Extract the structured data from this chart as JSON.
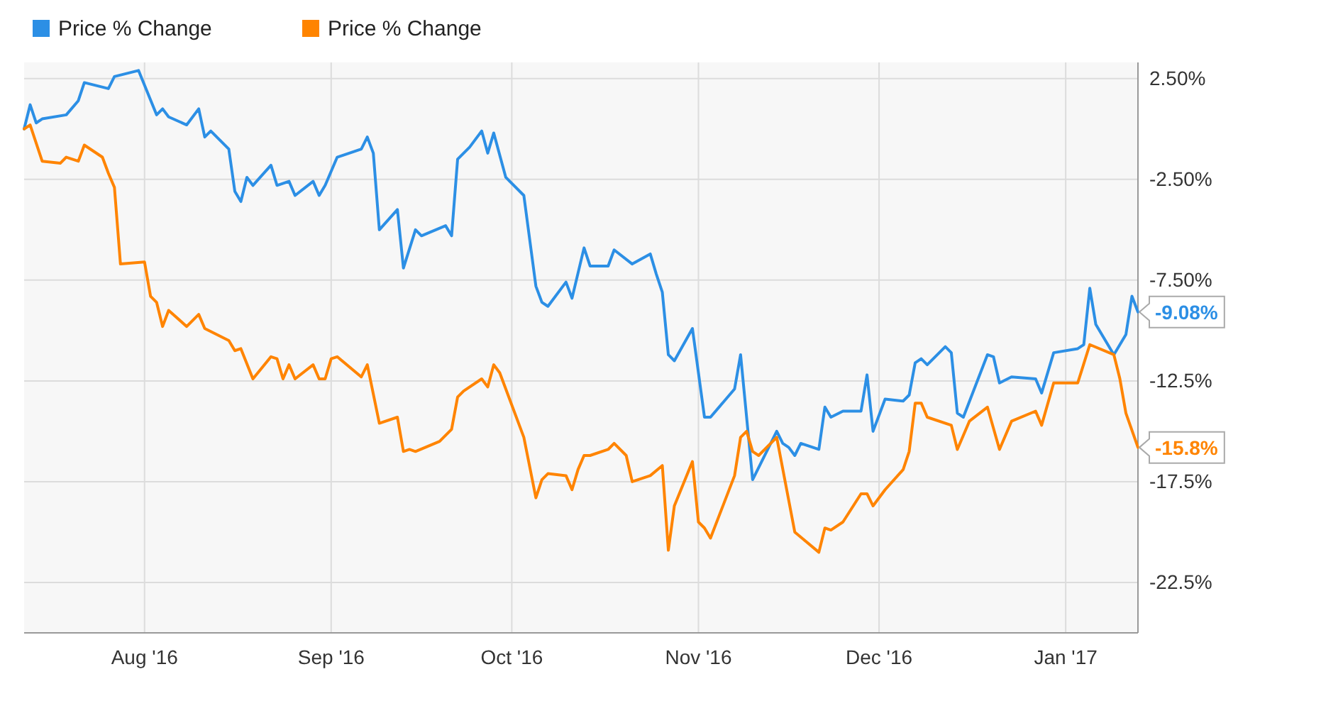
{
  "chart_data": {
    "type": "line",
    "xlim": [
      "2016-07-12",
      "2017-01-13"
    ],
    "xticks": [
      {
        "value": "2016-08-01",
        "label": "Aug '16"
      },
      {
        "value": "2016-09-01",
        "label": "Sep '16"
      },
      {
        "value": "2016-10-01",
        "label": "Oct '16"
      },
      {
        "value": "2016-11-01",
        "label": "Nov '16"
      },
      {
        "value": "2016-12-01",
        "label": "Dec '16"
      },
      {
        "value": "2017-01-01",
        "label": "Jan '17"
      }
    ],
    "ylim": [
      -25,
      3.3
    ],
    "yticks": [
      {
        "value": 2.5,
        "label": "2.50%"
      },
      {
        "value": -2.5,
        "label": "-2.50%"
      },
      {
        "value": -7.5,
        "label": "-7.50%"
      },
      {
        "value": -12.5,
        "label": "-12.5%"
      },
      {
        "value": -17.5,
        "label": "-17.5%"
      },
      {
        "value": -22.5,
        "label": "-22.5%"
      }
    ],
    "grid": true,
    "legend": "top left",
    "marker": "none",
    "line_style": "solid",
    "series": [
      {
        "name": "Price % Change",
        "color": "#2c8fe5",
        "x": [
          "2016-07-12",
          "2016-07-13",
          "2016-07-14",
          "2016-07-15",
          "2016-07-19",
          "2016-07-21",
          "2016-07-22",
          "2016-07-26",
          "2016-07-27",
          "2016-07-31",
          "2016-08-03",
          "2016-08-04",
          "2016-08-05",
          "2016-08-08",
          "2016-08-10",
          "2016-08-11",
          "2016-08-12",
          "2016-08-15",
          "2016-08-16",
          "2016-08-17",
          "2016-08-18",
          "2016-08-19",
          "2016-08-22",
          "2016-08-23",
          "2016-08-25",
          "2016-08-26",
          "2016-08-29",
          "2016-08-30",
          "2016-08-31",
          "2016-09-02",
          "2016-09-06",
          "2016-09-07",
          "2016-09-08",
          "2016-09-09",
          "2016-09-12",
          "2016-09-13",
          "2016-09-15",
          "2016-09-16",
          "2016-09-20",
          "2016-09-21",
          "2016-09-22",
          "2016-09-24",
          "2016-09-26",
          "2016-09-27",
          "2016-09-28",
          "2016-09-30",
          "2016-10-03",
          "2016-10-05",
          "2016-10-06",
          "2016-10-07",
          "2016-10-10",
          "2016-10-11",
          "2016-10-13",
          "2016-10-14",
          "2016-10-17",
          "2016-10-18",
          "2016-10-21",
          "2016-10-24",
          "2016-10-25",
          "2016-10-26",
          "2016-10-27",
          "2016-10-28",
          "2016-10-31",
          "2016-11-02",
          "2016-11-03",
          "2016-11-07",
          "2016-11-08",
          "2016-11-10",
          "2016-11-14",
          "2016-11-15",
          "2016-11-16",
          "2016-11-17",
          "2016-11-18",
          "2016-11-21",
          "2016-11-22",
          "2016-11-23",
          "2016-11-25",
          "2016-11-28",
          "2016-11-29",
          "2016-11-30",
          "2016-12-02",
          "2016-12-05",
          "2016-12-06",
          "2016-12-07",
          "2016-12-08",
          "2016-12-09",
          "2016-12-12",
          "2016-12-13",
          "2016-12-14",
          "2016-12-15",
          "2016-12-19",
          "2016-12-20",
          "2016-12-21",
          "2016-12-23",
          "2016-12-27",
          "2016-12-28",
          "2016-12-30",
          "2017-01-03",
          "2017-01-04",
          "2017-01-05",
          "2017-01-06",
          "2017-01-09",
          "2017-01-11",
          "2017-01-12",
          "2017-01-13"
        ],
        "values": [
          0,
          1.2,
          0.3,
          0.5,
          0.7,
          1.4,
          2.3,
          2.0,
          2.6,
          2.9,
          0.7,
          1.0,
          0.6,
          0.2,
          1.0,
          -0.4,
          -0.1,
          -1.0,
          -3.1,
          -3.6,
          -2.4,
          -2.8,
          -1.8,
          -2.8,
          -2.6,
          -3.3,
          -2.6,
          -3.3,
          -2.8,
          -1.4,
          -1.0,
          -0.4,
          -1.2,
          -5.0,
          -4.0,
          -6.9,
          -5.0,
          -5.3,
          -4.8,
          -5.3,
          -1.5,
          -0.9,
          -0.1,
          -1.2,
          -0.2,
          -2.4,
          -3.3,
          -7.8,
          -8.6,
          -8.8,
          -7.6,
          -8.4,
          -5.9,
          -6.8,
          -6.8,
          -6.0,
          -6.7,
          -6.2,
          -7.2,
          -8.1,
          -11.2,
          -11.5,
          -9.9,
          -14.3,
          -14.3,
          -12.9,
          -11.2,
          -17.4,
          -15.0,
          -15.6,
          -15.8,
          -16.2,
          -15.6,
          -15.9,
          -13.8,
          -14.3,
          -14.0,
          -14.0,
          -12.2,
          -15.0,
          -13.4,
          -13.5,
          -13.2,
          -11.6,
          -11.4,
          -11.7,
          -10.8,
          -11.1,
          -14.1,
          -14.3,
          -11.2,
          -11.3,
          -12.6,
          -12.3,
          -12.4,
          -13.1,
          -11.1,
          -10.9,
          -10.7,
          -7.9,
          -9.7,
          -11.2,
          -10.2,
          -8.3,
          -9.08
        ],
        "value_labels": [
          null,
          null,
          null,
          null,
          null,
          null,
          null,
          null,
          null,
          null,
          null,
          null,
          null,
          null,
          null,
          null,
          null,
          null,
          null,
          null,
          null,
          null,
          null,
          null,
          null,
          null,
          null,
          null,
          null,
          null,
          null,
          null,
          null,
          null,
          null,
          null,
          null,
          null,
          null,
          null,
          null,
          null,
          null,
          null,
          null,
          null,
          null,
          null,
          null,
          null,
          null,
          null,
          null,
          null,
          null,
          null,
          null,
          null,
          null,
          null,
          null,
          null,
          null,
          null,
          null,
          null,
          null,
          null,
          null,
          null,
          null,
          null,
          null,
          null,
          null,
          null,
          null,
          null,
          null,
          null,
          null,
          null,
          null,
          null,
          null,
          null,
          null,
          null,
          null,
          null,
          null,
          null,
          null,
          null,
          null,
          null,
          null,
          null,
          null,
          null,
          null,
          null,
          null,
          null,
          "-9.08%"
        ]
      },
      {
        "name": "Price % Change",
        "color": "#ff8400",
        "x": [
          "2016-07-12",
          "2016-07-13",
          "2016-07-15",
          "2016-07-18",
          "2016-07-19",
          "2016-07-21",
          "2016-07-22",
          "2016-07-25",
          "2016-07-26",
          "2016-07-27",
          "2016-07-28",
          "2016-08-01",
          "2016-08-02",
          "2016-08-03",
          "2016-08-04",
          "2016-08-05",
          "2016-08-08",
          "2016-08-10",
          "2016-08-11",
          "2016-08-15",
          "2016-08-16",
          "2016-08-17",
          "2016-08-19",
          "2016-08-22",
          "2016-08-23",
          "2016-08-24",
          "2016-08-25",
          "2016-08-26",
          "2016-08-29",
          "2016-08-30",
          "2016-08-31",
          "2016-09-01",
          "2016-09-02",
          "2016-09-06",
          "2016-09-07",
          "2016-09-09",
          "2016-09-12",
          "2016-09-13",
          "2016-09-14",
          "2016-09-15",
          "2016-09-19",
          "2016-09-21",
          "2016-09-22",
          "2016-09-23",
          "2016-09-26",
          "2016-09-27",
          "2016-09-28",
          "2016-09-29",
          "2016-10-03",
          "2016-10-05",
          "2016-10-06",
          "2016-10-07",
          "2016-10-10",
          "2016-10-11",
          "2016-10-12",
          "2016-10-13",
          "2016-10-14",
          "2016-10-17",
          "2016-10-18",
          "2016-10-20",
          "2016-10-21",
          "2016-10-24",
          "2016-10-26",
          "2016-10-27",
          "2016-10-28",
          "2016-10-31",
          "2016-11-01",
          "2016-11-02",
          "2016-11-03",
          "2016-11-07",
          "2016-11-08",
          "2016-11-09",
          "2016-11-10",
          "2016-11-11",
          "2016-11-14",
          "2016-11-17",
          "2016-11-21",
          "2016-11-22",
          "2016-11-23",
          "2016-11-25",
          "2016-11-28",
          "2016-11-29",
          "2016-11-30",
          "2016-12-02",
          "2016-12-05",
          "2016-12-06",
          "2016-12-07",
          "2016-12-08",
          "2016-12-09",
          "2016-12-13",
          "2016-12-14",
          "2016-12-16",
          "2016-12-19",
          "2016-12-21",
          "2016-12-23",
          "2016-12-27",
          "2016-12-28",
          "2016-12-30",
          "2017-01-03",
          "2017-01-05",
          "2017-01-09",
          "2017-01-10",
          "2017-01-11",
          "2017-01-13"
        ],
        "values": [
          0,
          0.2,
          -1.6,
          -1.7,
          -1.4,
          -1.6,
          -0.8,
          -1.4,
          -2.2,
          -2.9,
          -6.7,
          -6.6,
          -8.3,
          -8.6,
          -9.8,
          -9.0,
          -9.8,
          -9.2,
          -9.9,
          -10.5,
          -11.0,
          -10.9,
          -12.4,
          -11.3,
          -11.4,
          -12.4,
          -11.7,
          -12.4,
          -11.7,
          -12.4,
          -12.4,
          -11.4,
          -11.3,
          -12.3,
          -11.7,
          -14.6,
          -14.3,
          -16.0,
          -15.9,
          -16.0,
          -15.5,
          -14.9,
          -13.3,
          -13.0,
          -12.4,
          -12.8,
          -11.7,
          -12.1,
          -15.3,
          -18.3,
          -17.4,
          -17.1,
          -17.2,
          -17.9,
          -16.9,
          -16.2,
          -16.2,
          -15.9,
          -15.6,
          -16.2,
          -17.5,
          -17.2,
          -16.7,
          -20.9,
          -18.7,
          -16.5,
          -19.5,
          -19.8,
          -20.3,
          -17.2,
          -15.3,
          -15.0,
          -16.0,
          -16.2,
          -15.3,
          -20.0,
          -21.0,
          -19.8,
          -19.9,
          -19.5,
          -18.1,
          -18.1,
          -18.7,
          -17.9,
          -16.9,
          -16.0,
          -13.6,
          -13.6,
          -14.3,
          -14.7,
          -15.9,
          -14.5,
          -13.8,
          -15.9,
          -14.5,
          -14.0,
          -14.7,
          -12.6,
          -12.6,
          -10.7,
          -11.2,
          -12.4,
          -14.1,
          -15.8
        ],
        "value_labels": [
          null,
          null,
          null,
          null,
          null,
          null,
          null,
          null,
          null,
          null,
          null,
          null,
          null,
          null,
          null,
          null,
          null,
          null,
          null,
          null,
          null,
          null,
          null,
          null,
          null,
          null,
          null,
          null,
          null,
          null,
          null,
          null,
          null,
          null,
          null,
          null,
          null,
          null,
          null,
          null,
          null,
          null,
          null,
          null,
          null,
          null,
          null,
          null,
          null,
          null,
          null,
          null,
          null,
          null,
          null,
          null,
          null,
          null,
          null,
          null,
          null,
          null,
          null,
          null,
          null,
          null,
          null,
          null,
          null,
          null,
          null,
          null,
          null,
          null,
          null,
          null,
          null,
          null,
          null,
          null,
          null,
          null,
          null,
          null,
          null,
          null,
          null,
          null,
          null,
          null,
          null,
          null,
          null,
          null,
          null,
          null,
          null,
          null,
          null,
          null,
          null,
          null,
          null,
          "-15.8%"
        ]
      }
    ]
  }
}
